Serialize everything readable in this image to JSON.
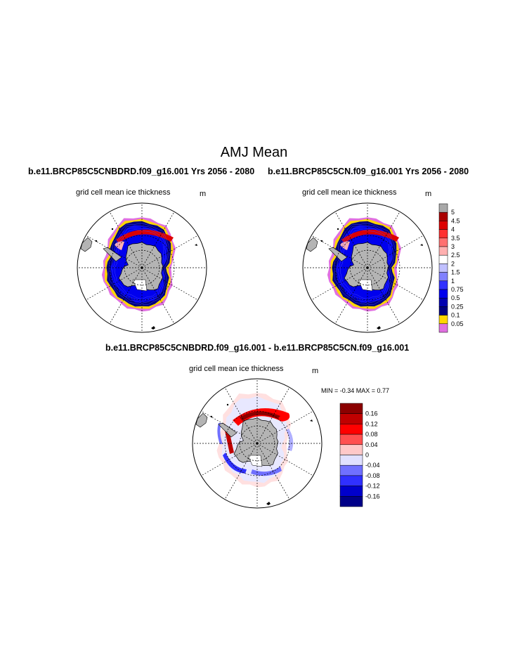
{
  "main_title": "AMJ Mean",
  "panels": [
    {
      "title": "b.e11.BRCP85C5CNBDRD.f09_g16.001  Yrs 2056 - 2080",
      "subtitle": "grid cell mean ice thickness",
      "unit": "m"
    },
    {
      "title": "b.e11.BRCP85C5CN.f09_g16.001  Yrs 2056 - 2080",
      "subtitle": "grid cell mean ice thickness",
      "unit": "m"
    }
  ],
  "diff_panel": {
    "title": "b.e11.BRCP85C5CNBDRD.f09_g16.001 - b.e11.BRCP85C5CN.f09_g16.001",
    "subtitle": "grid cell mean ice thickness",
    "unit": "m",
    "minmax": "MIN =   -0.34 MAX =   0.77"
  },
  "colorbar_thickness": {
    "labels": [
      "5",
      "4.5",
      "4",
      "3.5",
      "3",
      "2.5",
      "2",
      "1.5",
      "1",
      "0.75",
      "0.5",
      "0.25",
      "0.1",
      "0.05"
    ],
    "colors": [
      "#a8a8a8",
      "#aa0000",
      "#dd0000",
      "#ff3030",
      "#ff7070",
      "#ffb0b0",
      "#ffffff",
      "#c0c0ff",
      "#8080ff",
      "#3030ff",
      "#0000ee",
      "#0000b0",
      "#000080",
      "#ffd700",
      "#e070e0"
    ]
  },
  "colorbar_diff": {
    "labels": [
      "0.16",
      "0.12",
      "0.08",
      "0.04",
      "0",
      "-0.04",
      "-0.08",
      "-0.12",
      "-0.16"
    ],
    "colors": [
      "#8b0000",
      "#c00000",
      "#ff0000",
      "#ff5050",
      "#ffc8c8",
      "#e0e0ff",
      "#7070ff",
      "#3030ff",
      "#0000cc",
      "#000088"
    ]
  }
}
